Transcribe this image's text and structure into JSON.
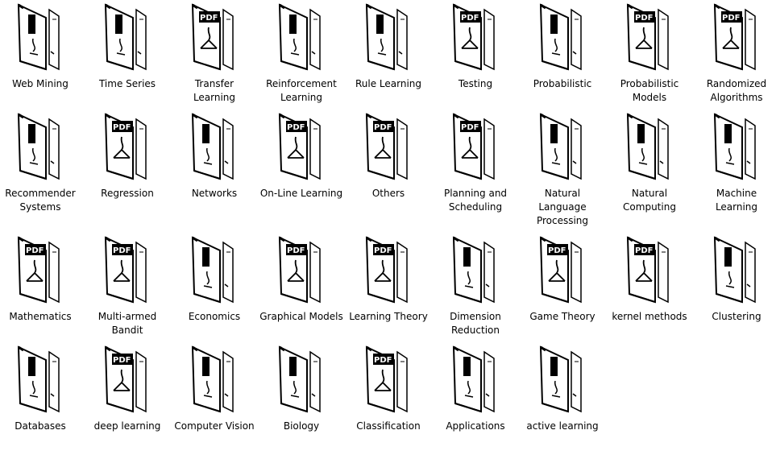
{
  "window": {
    "title": ""
  },
  "files": [
    {
      "label": "Web Mining",
      "icon": "folder-icon"
    },
    {
      "label": "Time Series",
      "icon": "folder-icon"
    },
    {
      "label": "Transfer Learning",
      "icon": "pdf-folder-icon"
    },
    {
      "label": "Reinforcement Learning",
      "icon": "folder-icon"
    },
    {
      "label": "Rule Learning",
      "icon": "folder-icon"
    },
    {
      "label": "Testing",
      "icon": "pdf-folder-icon"
    },
    {
      "label": "Probabilistic",
      "icon": "folder-icon"
    },
    {
      "label": "Probabilistic Models",
      "icon": "pdf-folder-icon"
    },
    {
      "label": "Randomized Algorithms",
      "icon": "pdf-folder-icon"
    },
    {
      "label": "Recommender Systems",
      "icon": "folder-icon"
    },
    {
      "label": "Regression",
      "icon": "pdf-folder-icon"
    },
    {
      "label": "Networks",
      "icon": "folder-icon"
    },
    {
      "label": "On-Line Learning",
      "icon": "pdf-folder-icon"
    },
    {
      "label": "Others",
      "icon": "pdf-folder-icon"
    },
    {
      "label": "Planning and Scheduling",
      "icon": "pdf-folder-icon"
    },
    {
      "label": "Natural Language Processing",
      "icon": "folder-icon"
    },
    {
      "label": "Natural Computing",
      "icon": "folder-icon"
    },
    {
      "label": "Machine Learning",
      "icon": "folder-icon"
    },
    {
      "label": "Mathematics",
      "icon": "pdf-folder-icon"
    },
    {
      "label": "Multi-armed Bandit",
      "icon": "pdf-folder-icon"
    },
    {
      "label": "Economics",
      "icon": "folder-icon"
    },
    {
      "label": "Graphical Models",
      "icon": "pdf-folder-icon"
    },
    {
      "label": "Learning Theory",
      "icon": "pdf-folder-icon"
    },
    {
      "label": "Dimension Reduction",
      "icon": "folder-icon"
    },
    {
      "label": "Game Theory",
      "icon": "pdf-folder-icon"
    },
    {
      "label": "kernel methods",
      "icon": "pdf-folder-icon"
    },
    {
      "label": "Clustering",
      "icon": "folder-icon"
    },
    {
      "label": "Databases",
      "icon": "folder-icon"
    },
    {
      "label": "deep learning",
      "icon": "pdf-folder-icon"
    },
    {
      "label": "Computer Vision",
      "icon": "folder-icon"
    },
    {
      "label": "Biology",
      "icon": "folder-icon"
    },
    {
      "label": "Classification",
      "icon": "pdf-folder-icon"
    },
    {
      "label": "Applications",
      "icon": "folder-icon"
    },
    {
      "label": "active learning",
      "icon": "folder-icon"
    }
  ],
  "icon_glyph": {
    "pdf_tag": "PDF"
  }
}
